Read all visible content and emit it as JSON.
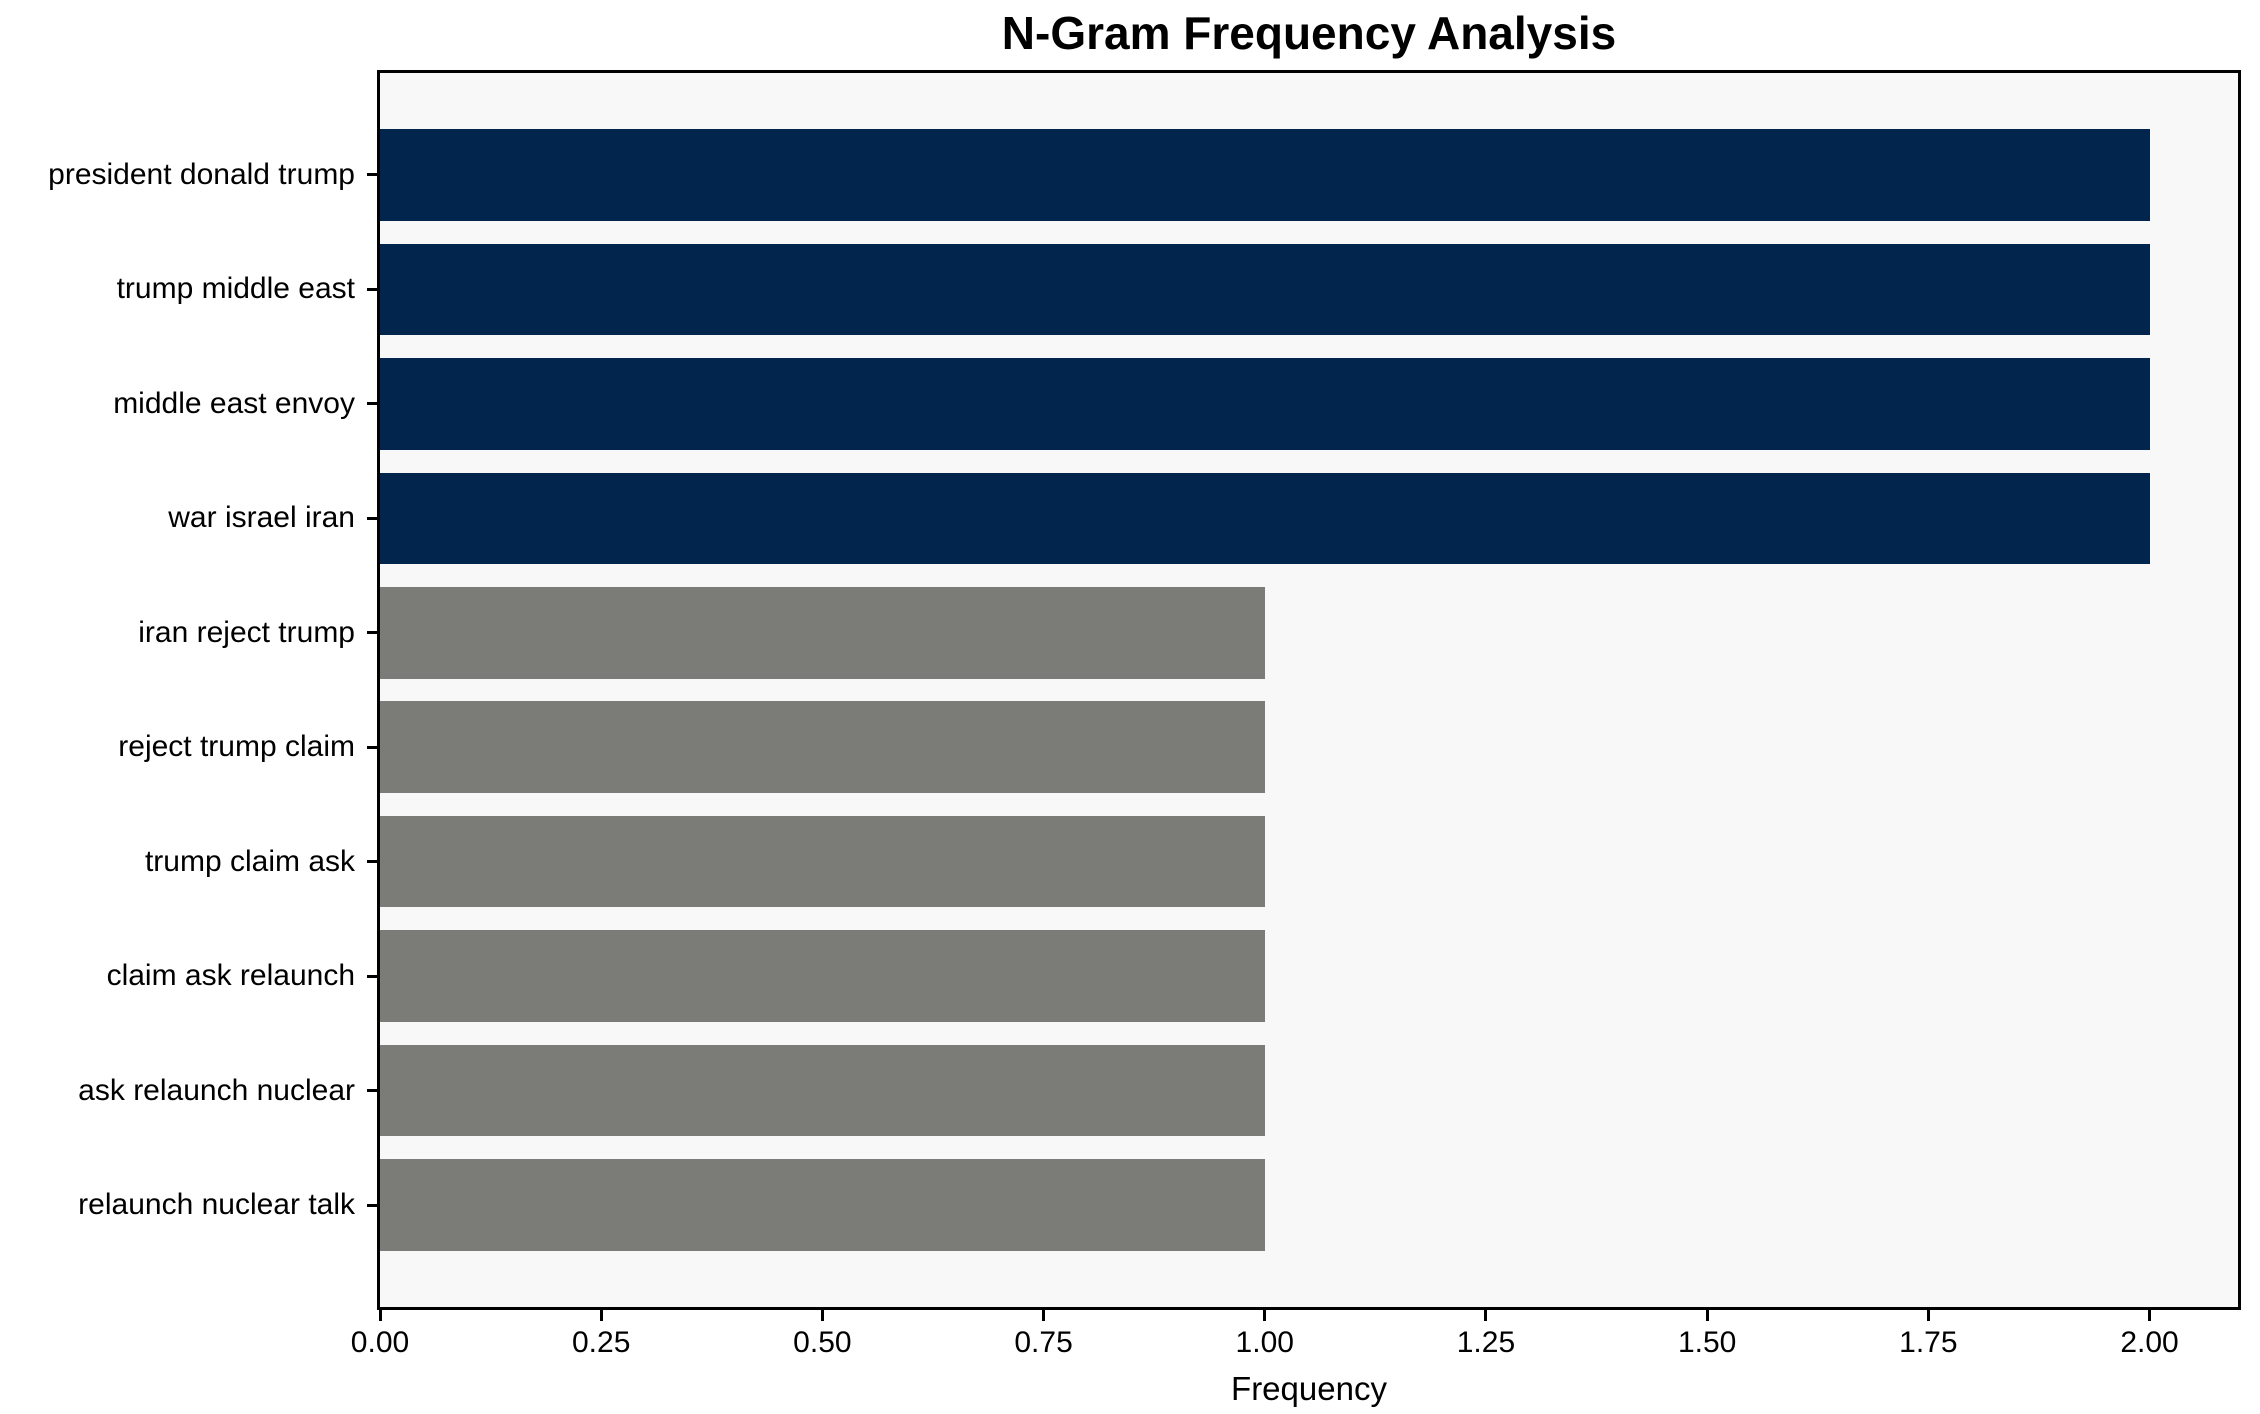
{
  "title": "N-Gram Frequency Analysis",
  "colors": {
    "bar_high": "#02254e",
    "bar_low": "#7b7b78",
    "plot_background": "#f7f8f7",
    "figure_background": "#ffffff",
    "spine": "#000000",
    "text": "#000000"
  },
  "chart_data": {
    "type": "bar",
    "orientation": "horizontal",
    "title": "N-Gram Frequency Analysis",
    "xlabel": "Frequency",
    "ylabel": "",
    "categories": [
      "president donald trump",
      "trump middle east",
      "middle east envoy",
      "war israel iran",
      "iran reject trump",
      "reject trump claim",
      "trump claim ask",
      "claim ask relaunch",
      "ask relaunch nuclear",
      "relaunch nuclear talk"
    ],
    "values": [
      2,
      2,
      2,
      2,
      1,
      1,
      1,
      1,
      1,
      1
    ],
    "bar_colors": [
      "#02254e",
      "#02254e",
      "#02254e",
      "#02254e",
      "#7b7b78",
      "#7b7b78",
      "#7b7b78",
      "#7b7b78",
      "#7b7b78",
      "#7b7b78"
    ],
    "x_tick_values": [
      0.0,
      0.25,
      0.5,
      0.75,
      1.0,
      1.25,
      1.5,
      1.75,
      2.0
    ],
    "x_tick_labels": [
      "0.00",
      "0.25",
      "0.50",
      "0.75",
      "1.00",
      "1.25",
      "1.50",
      "1.75",
      "2.00"
    ],
    "xlim": [
      0,
      2.1
    ],
    "bar_height_fraction": 0.8,
    "grid": false,
    "legend": false
  }
}
